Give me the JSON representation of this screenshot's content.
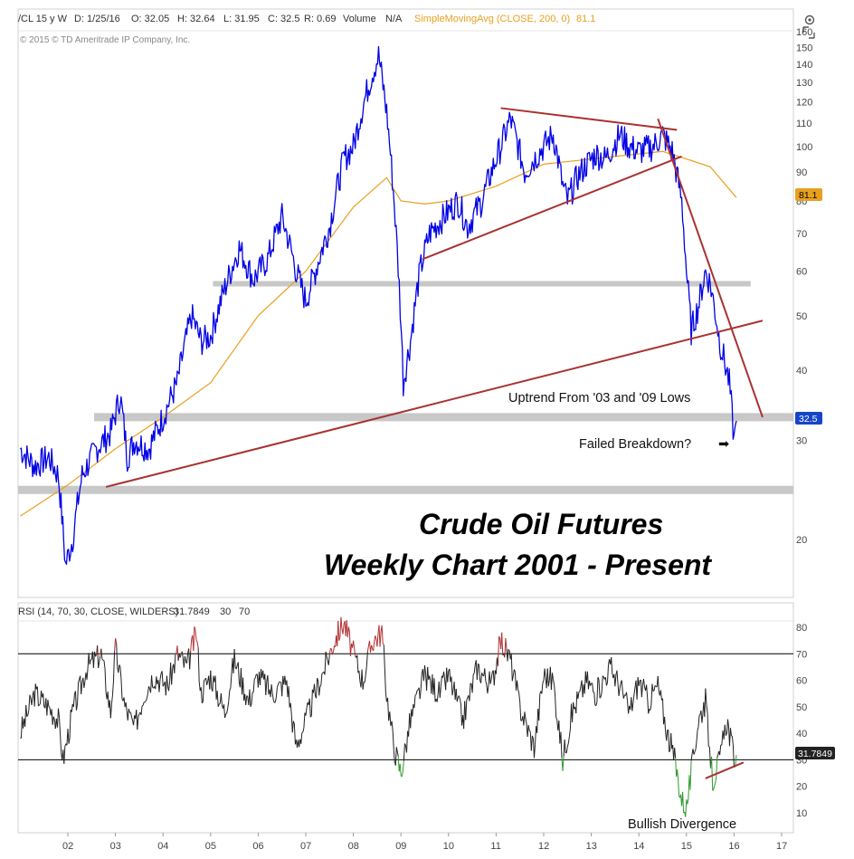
{
  "header": {
    "symbol": "/CL 15 y W",
    "date": "D: 1/25/16",
    "open": "O: 32.05",
    "high": "H: 32.64",
    "low": "L: 31.95",
    "close": "C: 32.5",
    "range": "R: 0.69",
    "volume_label": "Volume",
    "volume_value": "N/A",
    "sma_label": "SimpleMovingAvg (CLOSE, 200, 0)",
    "sma_value": "81.1"
  },
  "copyright": "© 2015 © TD Ameritrade IP Company, Inc.",
  "price_badge": "32.5",
  "sma_badge": "81.1",
  "rsi_badge": "31.7849",
  "annotations": {
    "uptrend": "Uptrend From '03 and '09 Lows",
    "failed": "Failed Breakdown?",
    "arrow": "➡",
    "bullish": "Bullish Divergence",
    "title1": "Crude Oil Futures",
    "title2": "Weekly Chart 2001 - Present"
  },
  "rsi_header": {
    "study": "RSI (14, 70, 30, CLOSE, WILDERS)",
    "value": "31.7849",
    "os": "30",
    "ob": "70"
  },
  "colors": {
    "price": "#0000e6",
    "sma": "#e8a020",
    "trendline": "#a83232",
    "support_band": "#c8c8c8",
    "rsi_line": "#222222",
    "rsi_overbought": "#b03030",
    "rsi_oversold": "#2e9a2e",
    "price_badge": "#1646c8",
    "sma_badge": "#e8a020"
  },
  "chart_data": [
    {
      "type": "line",
      "scale": "log",
      "y_ticks": [
        20,
        30,
        40,
        50,
        60,
        70,
        80,
        90,
        100,
        110,
        120,
        130,
        140,
        150,
        160
      ],
      "x_ticks": [
        "02",
        "03",
        "04",
        "05",
        "06",
        "07",
        "08",
        "09",
        "10",
        "11",
        "12",
        "13",
        "14",
        "15",
        "16",
        "17"
      ],
      "series": [
        {
          "kind": "price",
          "x": [
            2001.0,
            2001.3,
            2001.6,
            2001.8,
            2001.95,
            2002.1,
            2002.3,
            2002.6,
            2002.9,
            2003.1,
            2003.25,
            2003.4,
            2003.7,
            2004.0,
            2004.3,
            2004.6,
            2004.8,
            2005.0,
            2005.3,
            2005.6,
            2005.9,
            2006.2,
            2006.5,
            2006.8,
            2007.0,
            2007.2,
            2007.5,
            2007.8,
            2008.0,
            2008.2,
            2008.4,
            2008.53,
            2008.7,
            2008.9,
            2009.05,
            2009.2,
            2009.4,
            2009.6,
            2009.9,
            2010.2,
            2010.4,
            2010.7,
            2010.9,
            2011.1,
            2011.3,
            2011.6,
            2011.8,
            2012.0,
            2012.2,
            2012.4,
            2012.5,
            2012.7,
            2012.9,
            2013.1,
            2013.3,
            2013.6,
            2013.8,
            2014.0,
            2014.3,
            2014.5,
            2014.7,
            2014.9,
            2015.0,
            2015.1,
            2015.25,
            2015.4,
            2015.5,
            2015.7,
            2015.9,
            2016.0,
            2016.05
          ],
          "y": [
            29,
            27,
            28,
            26,
            18,
            20,
            26,
            29,
            31,
            36,
            28,
            30,
            29,
            33,
            38,
            50,
            45,
            46,
            56,
            66,
            58,
            63,
            75,
            60,
            53,
            60,
            72,
            95,
            100,
            118,
            135,
            145,
            115,
            70,
            38,
            45,
            60,
            70,
            75,
            80,
            72,
            80,
            90,
            100,
            112,
            90,
            95,
            100,
            105,
            85,
            80,
            88,
            93,
            97,
            95,
            105,
            100,
            98,
            100,
            105,
            98,
            80,
            60,
            47,
            52,
            60,
            57,
            45,
            38,
            30,
            32.5
          ]
        },
        {
          "kind": "sma",
          "label": "SimpleMovingAvg (CLOSE, 200, 0)",
          "x": [
            2001.0,
            2002.0,
            2003.0,
            2004.0,
            2005.0,
            2006.0,
            2007.0,
            2008.0,
            2008.7,
            2009.0,
            2009.5,
            2010.0,
            2011.0,
            2012.0,
            2013.0,
            2014.0,
            2014.5,
            2015.0,
            2015.5,
            2016.05
          ],
          "y": [
            22,
            25,
            29,
            33,
            38,
            50,
            60,
            78,
            88,
            80,
            79,
            80,
            85,
            93,
            95,
            97,
            98,
            95,
            92,
            81.1
          ]
        }
      ],
      "support_bands": [
        33,
        24.5,
        57
      ],
      "trendlines": [
        {
          "x": [
            2002.8,
            2016.6
          ],
          "y": [
            24.8,
            49
          ]
        },
        {
          "x": [
            2009.45,
            2014.9
          ],
          "y": [
            63,
            96
          ]
        },
        {
          "x": [
            2011.1,
            2014.8
          ],
          "y": [
            117,
            107
          ]
        },
        {
          "x": [
            2014.4,
            2016.6
          ],
          "y": [
            112,
            33
          ]
        }
      ]
    },
    {
      "type": "line",
      "title": "RSI (14, 70, 30, CLOSE, WILDERS)",
      "ylim": [
        5,
        85
      ],
      "y_ticks": [
        10,
        20,
        30,
        40,
        50,
        60,
        70,
        80
      ],
      "levels": [
        30,
        70
      ],
      "series": [
        {
          "kind": "rsi",
          "x": [
            2001.0,
            2001.3,
            2001.6,
            2001.8,
            2001.9,
            2002.1,
            2002.4,
            2002.7,
            2002.9,
            2003.0,
            2003.2,
            2003.4,
            2003.6,
            2003.8,
            2004.1,
            2004.3,
            2004.5,
            2004.7,
            2004.8,
            2005.0,
            2005.3,
            2005.5,
            2005.8,
            2006.0,
            2006.3,
            2006.6,
            2006.8,
            2007.0,
            2007.3,
            2007.6,
            2007.8,
            2008.0,
            2008.2,
            2008.4,
            2008.6,
            2008.7,
            2008.85,
            2009.0,
            2009.2,
            2009.5,
            2009.8,
            2010.0,
            2010.3,
            2010.6,
            2010.9,
            2011.1,
            2011.3,
            2011.5,
            2011.8,
            2012.0,
            2012.2,
            2012.4,
            2012.6,
            2012.9,
            2013.1,
            2013.4,
            2013.6,
            2013.8,
            2014.0,
            2014.2,
            2014.4,
            2014.6,
            2014.75,
            2014.9,
            2015.0,
            2015.1,
            2015.25,
            2015.4,
            2015.55,
            2015.7,
            2015.85,
            2016.0,
            2016.05
          ],
          "y": [
            40,
            55,
            50,
            45,
            30,
            48,
            65,
            70,
            48,
            72,
            50,
            42,
            55,
            62,
            58,
            70,
            65,
            78,
            55,
            62,
            48,
            68,
            52,
            62,
            55,
            60,
            35,
            45,
            60,
            75,
            82,
            70,
            60,
            75,
            78,
            55,
            35,
            25,
            45,
            62,
            55,
            62,
            45,
            65,
            58,
            75,
            68,
            50,
            35,
            62,
            60,
            30,
            48,
            60,
            55,
            65,
            58,
            48,
            60,
            52,
            58,
            40,
            30,
            15,
            12,
            25,
            45,
            52,
            22,
            30,
            45,
            31,
            31.7849
          ]
        }
      ],
      "divergence_line": {
        "x": [
          2015.4,
          2016.2
        ],
        "y": [
          23,
          29
        ]
      }
    }
  ]
}
